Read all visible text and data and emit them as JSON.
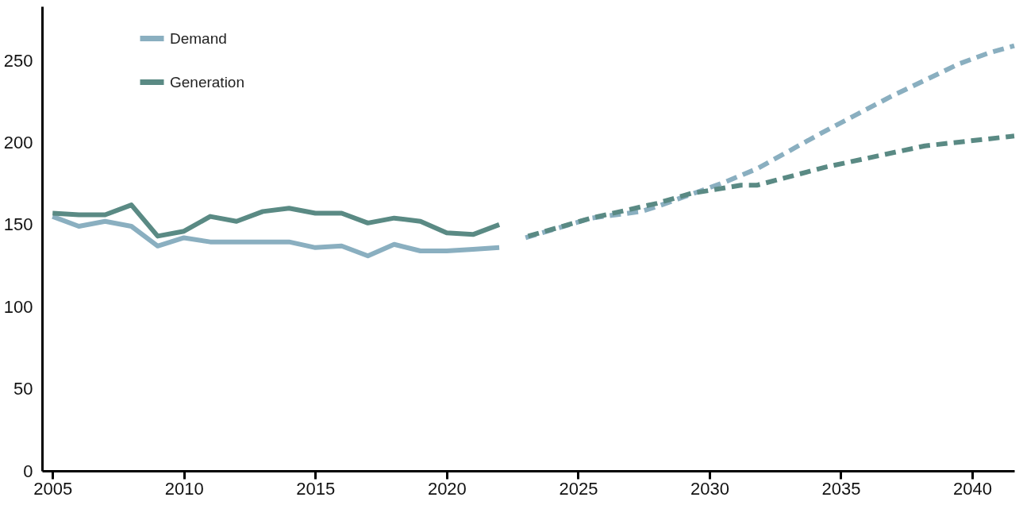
{
  "chart_data": {
    "type": "line",
    "xlim": [
      2004.6,
      2041.6
    ],
    "xticks": [
      2005,
      2010,
      2015,
      2020,
      2025,
      2030,
      2035,
      2040
    ],
    "ylim": [
      0,
      283
    ],
    "yticks": [
      0,
      50,
      100,
      150,
      200,
      250
    ],
    "grid": false,
    "legend": "top left",
    "marker": "none",
    "series": [
      {
        "name": "Demand",
        "color": "#8aafc0",
        "line_style": "solid",
        "x": [
          2005,
          2006,
          2007,
          2008,
          2009,
          2010,
          2011,
          2012,
          2013,
          2014,
          2015,
          2016,
          2017,
          2018,
          2019,
          2020,
          2021,
          2022
        ],
        "values": [
          155,
          149,
          152,
          149,
          137,
          142,
          139.5,
          139.5,
          139.5,
          139.5,
          136,
          137,
          131,
          138,
          134,
          134,
          135,
          136
        ]
      },
      {
        "name": "Generation",
        "color": "#5a8a84",
        "line_style": "solid",
        "x": [
          2005,
          2006,
          2007,
          2008,
          2009,
          2010,
          2011,
          2012,
          2013,
          2014,
          2015,
          2016,
          2017,
          2018,
          2019,
          2020,
          2021,
          2022
        ],
        "values": [
          157,
          156,
          156,
          162,
          143,
          146,
          155,
          152,
          158,
          160,
          157,
          157,
          151,
          154,
          152,
          145,
          144,
          150
        ]
      },
      {
        "color": "#8aafc0",
        "line_style": "dashed",
        "x": [
          2023.0,
          2025.5,
          2027.4,
          2028.0,
          2030.6,
          2031.8,
          2034.4,
          2036.9,
          2039.5,
          2040.7,
          2041.6
        ],
        "values": [
          142,
          154,
          158,
          161,
          176,
          184,
          207,
          228,
          248,
          255,
          259
        ]
      },
      {
        "color": "#5a8a84",
        "line_style": "dashed",
        "x": [
          2023.1,
          2025.5,
          2028.0,
          2029.3,
          2031.2,
          2031.8,
          2034.4,
          2038.2,
          2041.6
        ],
        "values": [
          143,
          154,
          163,
          169,
          174,
          174,
          185,
          198,
          204
        ]
      }
    ]
  }
}
